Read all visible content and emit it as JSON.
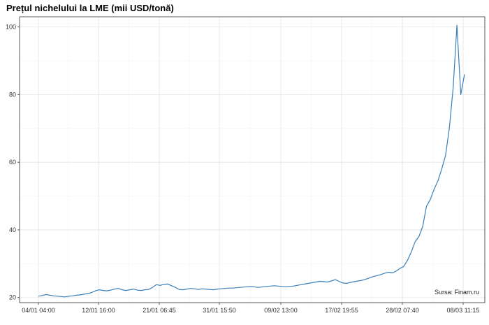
{
  "chart_data": {
    "type": "line",
    "title": "Prețul nichelului la LME (mii USD/tonă)",
    "source": "Sursa: Finam.ru",
    "xlabel": "",
    "ylabel": "",
    "ylim": [
      18.5,
      103
    ],
    "y_ticks": [
      20,
      40,
      60,
      80,
      100
    ],
    "x_ticks": [
      "04/01 04:00",
      "12/01 16:00",
      "21/01 06:45",
      "31/01 15:50",
      "09/02 13:00",
      "17/02 19:55",
      "28/02 07:40",
      "08/03 11:15"
    ],
    "grid": true,
    "legend": "none",
    "line_color": "#3a7fb8",
    "series": [
      {
        "values": [
          20.4,
          20.6,
          20.9,
          20.7,
          20.5,
          20.4,
          20.3,
          20.2,
          20.4,
          20.5,
          20.7,
          20.8,
          21.0,
          21.2,
          21.5,
          22.0,
          22.3,
          22.1,
          22.0,
          22.2,
          22.5,
          22.7,
          22.3,
          22.1,
          22.3,
          22.5,
          22.2,
          22.1,
          22.3,
          22.4,
          23.0,
          23.8,
          23.6,
          23.9,
          24.0,
          23.5,
          23.0,
          22.4,
          22.3,
          22.5,
          22.7,
          22.6,
          22.4,
          22.6,
          22.5,
          22.4,
          22.3,
          22.5,
          22.6,
          22.7,
          22.8,
          22.8,
          22.9,
          23.0,
          23.1,
          23.2,
          23.3,
          23.1,
          23.0,
          23.2,
          23.3,
          23.4,
          23.5,
          23.4,
          23.3,
          23.2,
          23.3,
          23.4,
          23.6,
          23.8,
          24.0,
          24.2,
          24.4,
          24.6,
          24.8,
          24.7,
          24.6,
          24.9,
          25.3,
          24.8,
          24.3,
          24.2,
          24.5,
          24.7,
          24.9,
          25.1,
          25.4,
          25.8,
          26.2,
          26.5,
          26.8,
          27.2,
          27.5,
          27.3,
          27.8,
          28.6,
          29.2,
          31.0,
          33.5,
          36.5,
          38.0,
          41.0,
          47.0,
          49.0,
          52.0,
          54.5,
          58.0,
          62.0,
          70.0,
          82.0,
          100.5,
          80.0,
          86.0
        ]
      }
    ]
  }
}
